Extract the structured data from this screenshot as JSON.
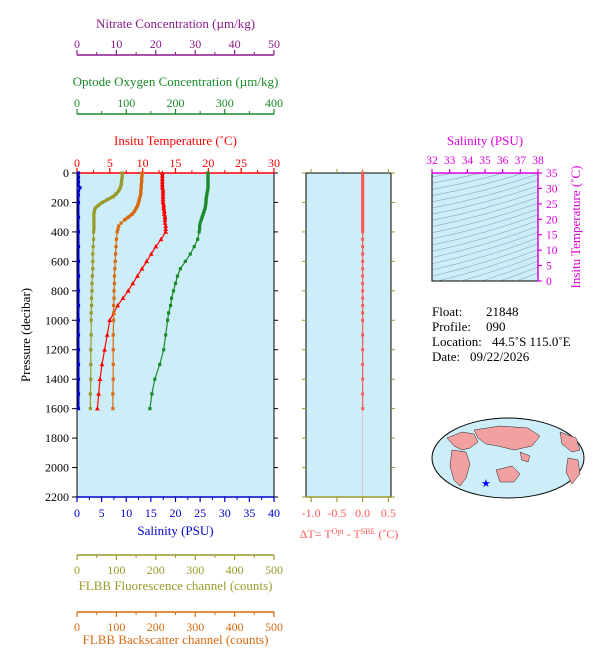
{
  "colors": {
    "nitrate": "#8b1a8b",
    "oxygen": "#1a8a2a",
    "temperature": "#ff0000",
    "salinity": "#0000cc",
    "fluorescence": "#9a9a2a",
    "backscatter": "#d86a10",
    "deltaT": "#ff5a5a",
    "inset_axis": "#dd00dd",
    "plot_bg": "#cdeef8",
    "map_land": "#f2a0a0"
  },
  "info": {
    "float_label": "Float:",
    "float_value": "21848",
    "profile_label": "Profile:",
    "profile_value": "090",
    "location_label": "Location:",
    "location_value": "44.5˚S 115.0˚E",
    "date_label": "Date:",
    "date_value": "09/22/2026"
  },
  "chart_data": [
    {
      "id": "main-profile",
      "type": "line",
      "ylabel": "Pressure (decibar)",
      "ylim": [
        2200,
        0
      ],
      "y_ticks": [
        "0",
        "200",
        "400",
        "600",
        "800",
        "1000",
        "1200",
        "1400",
        "1600",
        "1800",
        "2000",
        "2200"
      ],
      "axes": {
        "nitrate": {
          "label": "Nitrate Concentration (µm/kg)",
          "range": [
            0,
            50
          ],
          "ticks": [
            "0",
            "10",
            "20",
            "30",
            "40",
            "50"
          ]
        },
        "oxygen": {
          "label": "Optode Oxygen Concentration (µm/kg)",
          "range": [
            0,
            400
          ],
          "ticks": [
            "0",
            "100",
            "200",
            "300",
            "400"
          ]
        },
        "temperature": {
          "label": "Insitu Temperature (˚C)",
          "range": [
            0,
            30
          ],
          "ticks": [
            "0",
            "5",
            "10",
            "15",
            "20",
            "25",
            "30"
          ]
        },
        "salinity": {
          "label": "Salinity (PSU)",
          "range": [
            0,
            40
          ],
          "ticks": [
            "0",
            "5",
            "10",
            "15",
            "20",
            "25",
            "30",
            "35",
            "40"
          ]
        },
        "fluorescence": {
          "label": "FLBB Fluorescence channel (counts)",
          "range": [
            0,
            500
          ],
          "ticks": [
            "0",
            "100",
            "200",
            "300",
            "400",
            "500"
          ]
        },
        "backscatter": {
          "label": "FLBB Backscatter channel (counts)",
          "range": [
            0,
            500
          ],
          "ticks": [
            "0",
            "100",
            "200",
            "300",
            "400",
            "500"
          ]
        }
      },
      "series": [
        {
          "key": "temperature",
          "pressure": [
            0,
            20,
            40,
            60,
            80,
            100,
            120,
            140,
            160,
            180,
            200,
            220,
            240,
            260,
            280,
            300,
            320,
            340,
            360,
            380,
            400,
            450,
            500,
            550,
            600,
            650,
            700,
            750,
            800,
            850,
            900,
            950,
            1000,
            1100,
            1200,
            1300,
            1400,
            1500,
            1600
          ],
          "values": [
            13.0,
            13.0,
            13.0,
            13.0,
            13.0,
            13.0,
            13.1,
            13.1,
            13.1,
            13.1,
            13.1,
            13.2,
            13.2,
            13.3,
            13.3,
            13.4,
            13.4,
            13.4,
            13.5,
            13.5,
            13.5,
            12.8,
            12.0,
            11.3,
            10.6,
            9.9,
            9.2,
            8.5,
            7.8,
            7.0,
            6.2,
            5.6,
            5.0,
            4.6,
            4.2,
            3.8,
            3.5,
            3.3,
            3.1
          ]
        },
        {
          "key": "oxygen",
          "pressure": [
            0,
            20,
            40,
            60,
            80,
            100,
            120,
            140,
            160,
            180,
            200,
            220,
            240,
            260,
            280,
            300,
            320,
            340,
            360,
            380,
            400,
            450,
            500,
            550,
            600,
            650,
            700,
            750,
            800,
            850,
            900,
            950,
            1000,
            1100,
            1200,
            1300,
            1400,
            1500,
            1600
          ],
          "values": [
            266,
            266,
            266,
            266,
            266,
            266,
            265,
            264,
            263,
            262,
            262,
            261,
            260,
            258,
            256,
            254,
            252,
            250,
            249,
            249,
            248,
            245,
            238,
            230,
            220,
            210,
            204,
            200,
            196,
            192,
            190,
            186,
            184,
            180,
            176,
            168,
            158,
            152,
            148
          ]
        },
        {
          "key": "fluorescence",
          "pressure": [
            0,
            20,
            40,
            60,
            80,
            100,
            120,
            140,
            160,
            180,
            200,
            220,
            240,
            260,
            280,
            300,
            320,
            340,
            360,
            380,
            400,
            450,
            500,
            550,
            600,
            650,
            700,
            750,
            800,
            850,
            900,
            950,
            1000,
            1100,
            1200,
            1300,
            1400,
            1500,
            1600
          ],
          "values": [
            115,
            115,
            114,
            113,
            112,
            110,
            106,
            100,
            92,
            78,
            64,
            54,
            46,
            44,
            43,
            43,
            43,
            43,
            43,
            43,
            42,
            42,
            41,
            40,
            40,
            40,
            39,
            38,
            38,
            37,
            37,
            36,
            36,
            36,
            35,
            35,
            35,
            34,
            34
          ]
        },
        {
          "key": "backscatter",
          "pressure": [
            0,
            20,
            40,
            60,
            80,
            100,
            120,
            140,
            160,
            180,
            200,
            220,
            240,
            260,
            280,
            300,
            320,
            340,
            360,
            380,
            400,
            450,
            500,
            550,
            600,
            650,
            700,
            750,
            800,
            850,
            900,
            950,
            1000,
            1100,
            1200,
            1300,
            1400,
            1500,
            1600
          ],
          "values": [
            165,
            165,
            164,
            164,
            163,
            163,
            162,
            162,
            160,
            158,
            156,
            154,
            150,
            146,
            140,
            130,
            120,
            112,
            106,
            104,
            102,
            100,
            99,
            98,
            97,
            96,
            95,
            95,
            94,
            94,
            93,
            93,
            93,
            92,
            92,
            92,
            92,
            91,
            91
          ]
        },
        {
          "key": "salinity",
          "pressure": [
            0,
            30,
            60,
            90,
            100,
            120,
            150,
            200,
            300,
            400,
            500,
            600,
            700,
            800,
            900,
            1000,
            1100,
            1200,
            1300,
            1400,
            1500,
            1600
          ],
          "values": [
            0.3,
            0.3,
            0.3,
            0.3,
            0.6,
            0.3,
            0.3,
            0.3,
            0.3,
            0.3,
            0.3,
            0.3,
            0.3,
            0.3,
            0.3,
            0.3,
            0.3,
            0.3,
            0.3,
            0.3,
            0.3,
            0.3
          ]
        }
      ]
    },
    {
      "id": "delta-t",
      "type": "line",
      "xlabel": "ΔT= T",
      "xlabel_sup1": "Opt",
      "xlabel_mid": " - T",
      "xlabel_sup2": "SBE",
      "xlabel_end": " (˚C)",
      "xlim": [
        -1.1,
        0.55
      ],
      "x_ticks": [
        {
          "value": -1.0,
          "label": "-1.0"
        },
        {
          "value": -0.5,
          "label": "-0.5"
        },
        {
          "value": 0.0,
          "label": "0.0"
        },
        {
          "value": 0.5,
          "label": "0.5"
        }
      ],
      "ylim": [
        2200,
        0
      ],
      "pressure": [
        0,
        20,
        40,
        60,
        80,
        100,
        120,
        140,
        160,
        180,
        200,
        220,
        240,
        260,
        280,
        300,
        320,
        340,
        360,
        380,
        400,
        450,
        500,
        550,
        600,
        650,
        700,
        750,
        800,
        850,
        900,
        950,
        1000,
        1100,
        1200,
        1300,
        1400,
        1500,
        1600
      ],
      "values": [
        0.0,
        0.0,
        0.0,
        0.0,
        0.0,
        0.0,
        0.0,
        0.0,
        0.0,
        0.0,
        0.0,
        0.0,
        0.0,
        0.0,
        0.0,
        0.0,
        0.0,
        0.0,
        0.0,
        0.0,
        0.0,
        0.0,
        0.0,
        0.0,
        0.0,
        0.0,
        0.0,
        0.0,
        0.0,
        0.0,
        0.0,
        0.0,
        0.0,
        0.0,
        0.0,
        0.0,
        0.0,
        0.0,
        0.0
      ]
    },
    {
      "id": "ts-inset",
      "type": "line",
      "xlabel": "Salinity (PSU)",
      "ylabel": "Insitu Temperature (˚C)",
      "xlim": [
        32,
        38
      ],
      "ylim": [
        0,
        35
      ],
      "x_ticks": [
        "32",
        "33",
        "34",
        "35",
        "36",
        "37",
        "38"
      ],
      "y_ticks": [
        "0",
        "5",
        "10",
        "15",
        "20",
        "25",
        "30",
        "35"
      ]
    }
  ]
}
